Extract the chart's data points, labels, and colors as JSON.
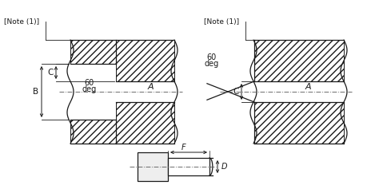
{
  "bg_color": "#ffffff",
  "line_color": "#1a1a1a",
  "note1_text": "[Note (1)]",
  "label_A": "A",
  "label_B": "B",
  "label_C": "C",
  "label_C2": "C",
  "label_F": "F",
  "label_D": "D",
  "label_60": "60",
  "label_deg": "deg"
}
